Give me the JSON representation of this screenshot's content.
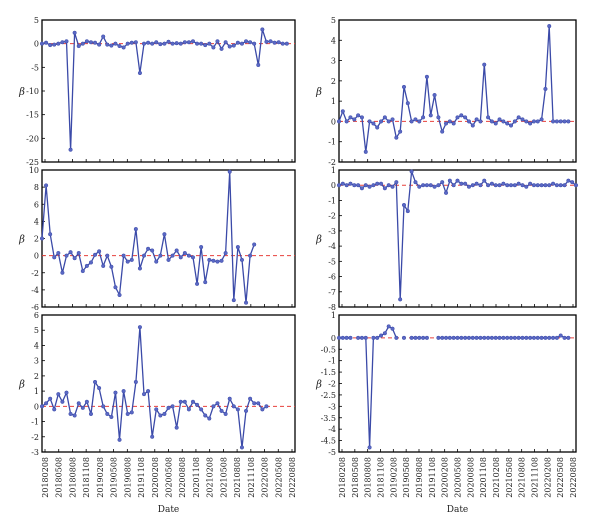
{
  "colors": {
    "series": "#3b4aa8",
    "marker": "#5a68c4",
    "zero_line": "#e8413c",
    "axis": "#000000"
  },
  "x_tick_labels": [
    "20180208",
    "20180508",
    "20180808",
    "20181108",
    "20190208",
    "20190508",
    "20190808",
    "20191108",
    "20200208",
    "20200508",
    "20200808",
    "20201108",
    "20210208",
    "20210508",
    "20210808",
    "20211108",
    "20220208",
    "20220508",
    "20220808"
  ],
  "xlabel": "Date",
  "chart_data": [
    {
      "type": "line",
      "ylabel": "β",
      "ylim": [
        -25,
        5
      ],
      "yticks": [
        5,
        0,
        -5,
        -10,
        -15,
        -20,
        -25
      ],
      "reference_line": 0,
      "x_range": [
        0,
        62
      ],
      "values": [
        0,
        0.2,
        -0.3,
        -0.2,
        0,
        0.3,
        0.5,
        -22.4,
        2.3,
        -0.5,
        0,
        0.5,
        0.3,
        0.2,
        -0.2,
        1.5,
        -0.2,
        -0.4,
        0,
        -0.5,
        -0.8,
        0,
        0.2,
        0.3,
        -6.2,
        0,
        0.2,
        0,
        0.3,
        -0.1,
        0,
        0.4,
        0,
        0.1,
        0,
        0.3,
        0.3,
        0.5,
        0,
        0,
        -0.3,
        0,
        -0.8,
        0.5,
        -1.1,
        0.3,
        -0.6,
        -0.4,
        0.2,
        0,
        0.5,
        0.3,
        0,
        -4.5,
        3,
        0.4,
        0.5,
        0.2,
        0.3,
        0,
        0
      ]
    },
    {
      "type": "line",
      "ylabel": "β",
      "ylim": [
        -2,
        5
      ],
      "yticks": [
        5,
        4,
        3,
        2,
        1,
        0,
        -1,
        -2
      ],
      "reference_line": 0,
      "x_range": [
        0,
        62
      ],
      "values": [
        0,
        0.5,
        0,
        0.2,
        0.1,
        0.3,
        0.2,
        -1.5,
        0,
        -0.1,
        -0.3,
        0,
        0.2,
        0,
        0.1,
        -0.8,
        -0.5,
        1.7,
        0.9,
        0,
        0.1,
        0,
        0.2,
        2.2,
        0.3,
        1.3,
        0.2,
        -0.5,
        -0.1,
        0,
        -0.1,
        0.2,
        0.3,
        0.2,
        0,
        -0.2,
        0.1,
        0,
        2.8,
        0.2,
        0,
        -0.1,
        0.1,
        0,
        -0.1,
        -0.2,
        0,
        0.2,
        0.1,
        0,
        -0.1,
        0,
        0,
        0.1,
        1.6,
        4.7,
        0,
        0,
        0,
        0,
        0
      ]
    },
    {
      "type": "line",
      "ylabel": "β",
      "ylim": [
        -6,
        10
      ],
      "yticks": [
        10,
        8,
        6,
        4,
        2,
        0,
        -2,
        -4,
        -6
      ],
      "reference_line": 0,
      "x_range": [
        0,
        62
      ],
      "values": [
        2,
        8.2,
        2.5,
        -0.2,
        0.3,
        -2,
        0,
        0.4,
        -0.3,
        0.3,
        -1.8,
        -1.2,
        -0.8,
        0.1,
        0.5,
        -1.2,
        0,
        -1.3,
        -3.7,
        -4.6,
        0,
        -0.7,
        -0.5,
        3.1,
        -1.5,
        0,
        0.8,
        0.6,
        -0.7,
        0,
        2.5,
        -0.5,
        0,
        0.6,
        -0.2,
        0.3,
        0,
        -0.2,
        -3.3,
        1,
        -3.1,
        -0.5,
        -0.6,
        -0.7,
        -0.6,
        0.3,
        9.8,
        -5.2,
        1,
        -0.5,
        -5.5,
        0,
        1.3
      ]
    },
    {
      "type": "line",
      "ylabel": "β",
      "ylim": [
        -8,
        1
      ],
      "yticks": [
        1,
        0,
        -1,
        -2,
        -3,
        -4,
        -5,
        -6,
        -7,
        -8
      ],
      "reference_line": 0,
      "x_range": [
        0,
        62
      ],
      "values": [
        0,
        0.1,
        0,
        0.1,
        0,
        0,
        -0.2,
        0,
        -0.1,
        0,
        0.1,
        0.1,
        -0.2,
        0,
        -0.1,
        0.2,
        -7.5,
        -1.3,
        -1.7,
        0.9,
        0.2,
        -0.1,
        0,
        0,
        0,
        -0.1,
        0,
        0.2,
        -0.5,
        0.3,
        0,
        0.3,
        0.1,
        0.1,
        -0.1,
        0,
        0.1,
        0,
        0.3,
        0,
        0.1,
        0,
        0,
        0.1,
        0,
        0,
        0,
        0.1,
        0,
        -0.1,
        0.1,
        0,
        0,
        0,
        0,
        0,
        0.1,
        0,
        0,
        0,
        0.3,
        0.2,
        0
      ]
    },
    {
      "type": "line",
      "ylabel": "β",
      "ylim": [
        -3,
        6
      ],
      "yticks": [
        6,
        5,
        4,
        3,
        2,
        1,
        0,
        -1,
        -2,
        -3
      ],
      "reference_line": 0,
      "x_range": [
        0,
        62
      ],
      "values": [
        0,
        0.2,
        0.5,
        -0.2,
        0.8,
        0.3,
        0.9,
        -0.5,
        -0.6,
        0.2,
        -0.1,
        0.3,
        -0.5,
        1.6,
        1.2,
        0,
        -0.5,
        -0.7,
        0.9,
        -2.2,
        1,
        -0.5,
        -0.4,
        1.6,
        5.2,
        0.8,
        1.0,
        -2,
        -0.2,
        -0.6,
        -0.5,
        -0.1,
        0,
        -1.4,
        0.3,
        0.3,
        -0.2,
        0.3,
        0.1,
        -0.2,
        -0.6,
        -0.8,
        0,
        0.2,
        -0.3,
        -0.5,
        0.5,
        0,
        -0.2,
        -2.7,
        -0.3,
        0.5,
        0.2,
        0.2,
        -0.2,
        0
      ]
    },
    {
      "type": "line",
      "ylabel": "β",
      "ylim": [
        -5,
        1
      ],
      "yticks": [
        1,
        0,
        -0.5,
        -1,
        -1.5,
        -2,
        -2.5,
        -3,
        -3.5,
        -4,
        -4.5,
        -5
      ],
      "reference_line": 0,
      "x_range": [
        0,
        62
      ],
      "values": [
        0,
        0,
        0,
        0,
        null,
        0,
        0,
        0,
        -4.8,
        0,
        0,
        0.1,
        0.2,
        0.5,
        0.4,
        0,
        null,
        0,
        null,
        0,
        0,
        0,
        0,
        0,
        null,
        null,
        0,
        0,
        0,
        0,
        0,
        0,
        0,
        0,
        0,
        0,
        0,
        0,
        0,
        0,
        0,
        0,
        0,
        0,
        0,
        0,
        0,
        0,
        0,
        0,
        0,
        0,
        0,
        0,
        0,
        0,
        0,
        0,
        0.1,
        0,
        0
      ]
    }
  ]
}
